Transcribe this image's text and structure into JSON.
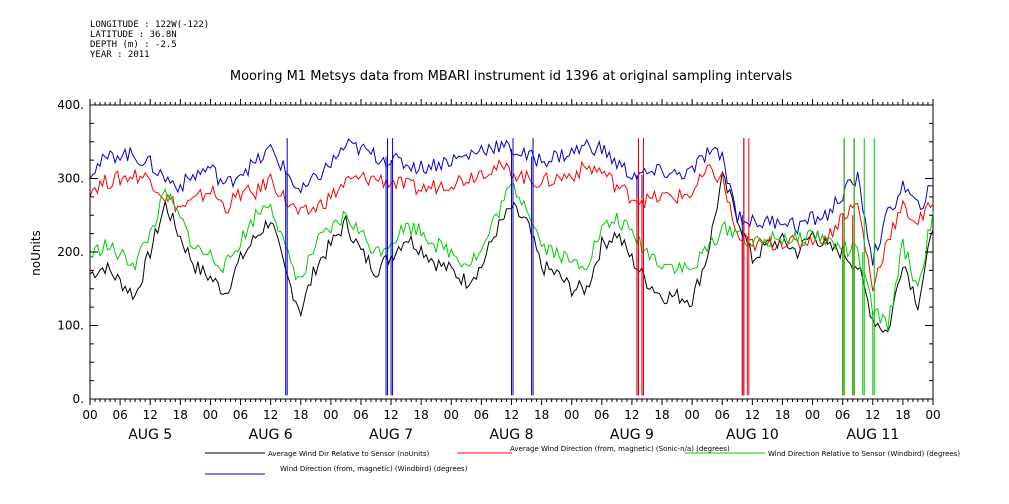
{
  "meta": [
    "LONGITUDE : 122W(-122)",
    "LATITUDE : 36.8N",
    "DEPTH (m) : -2.5",
    "YEAR : 2011"
  ],
  "chart_data": {
    "type": "line",
    "title": "Mooring M1 Metsys data from MBARI instrument id 1396 at original sampling intervals",
    "ylabel": "noUnits",
    "ylim": [
      0,
      400
    ],
    "yticks": [
      "0.",
      "100.",
      "200.",
      "300.",
      "400."
    ],
    "xlim_hours": [
      0,
      168
    ],
    "x_hour_labels": [
      "00",
      "06",
      "12",
      "18",
      "00",
      "06",
      "12",
      "18",
      "00",
      "06",
      "12",
      "18",
      "00",
      "06",
      "12",
      "18",
      "00",
      "06",
      "12",
      "18",
      "00",
      "06",
      "12",
      "18",
      "00",
      "06",
      "12",
      "18",
      "00"
    ],
    "day_labels": [
      "AUG  5",
      "AUG  6",
      "AUG  7",
      "AUG  8",
      "AUG  9",
      "AUG 10",
      "AUG 11"
    ],
    "grid": false,
    "legend_placement": "bottom",
    "series": [
      {
        "name": "Average Wind Dir Relative to Sensor (noUnits)",
        "color": "#000000",
        "x": [
          0,
          3,
          6,
          9,
          12,
          15,
          18,
          21,
          24,
          27,
          30,
          33,
          36,
          39,
          42,
          45,
          48,
          51,
          54,
          57,
          60,
          63,
          66,
          69,
          72,
          75,
          78,
          81,
          84,
          87,
          90,
          93,
          96,
          99,
          102,
          105,
          108,
          111,
          114,
          117,
          120,
          123,
          126,
          129,
          132,
          135,
          138,
          141,
          144,
          147,
          150,
          153,
          156,
          159,
          162,
          165,
          168
        ],
        "values": [
          170,
          180,
          160,
          140,
          200,
          265,
          220,
          180,
          165,
          145,
          190,
          220,
          245,
          170,
          120,
          180,
          210,
          240,
          200,
          175,
          195,
          220,
          205,
          185,
          175,
          160,
          180,
          230,
          260,
          240,
          180,
          170,
          150,
          150,
          210,
          225,
          190,
          160,
          140,
          140,
          135,
          195,
          300,
          250,
          190,
          210,
          215,
          200,
          225,
          205,
          200,
          180,
          110,
          90,
          190,
          130,
          230
        ]
      },
      {
        "name": "Average Wind Direction (from, magnetic) (Sonic-n/a) (degrees)",
        "color": "#ff0000",
        "x": [
          0,
          3,
          6,
          9,
          12,
          15,
          18,
          21,
          24,
          27,
          30,
          33,
          36,
          39,
          42,
          45,
          48,
          51,
          54,
          57,
          60,
          63,
          66,
          69,
          72,
          75,
          78,
          81,
          84,
          87,
          90,
          93,
          96,
          99,
          102,
          105,
          108,
          111,
          114,
          117,
          120,
          123,
          126,
          129,
          132,
          135,
          138,
          141,
          144,
          147,
          150,
          153,
          156,
          159,
          162,
          165,
          168
        ],
        "values": [
          285,
          295,
          300,
          305,
          300,
          275,
          260,
          270,
          285,
          260,
          280,
          280,
          300,
          270,
          250,
          260,
          275,
          295,
          300,
          300,
          295,
          290,
          285,
          290,
          295,
          300,
          310,
          315,
          310,
          300,
          295,
          300,
          305,
          315,
          310,
          290,
          275,
          270,
          275,
          275,
          280,
          310,
          300,
          220,
          210,
          210,
          215,
          210,
          220,
          220,
          250,
          265,
          150,
          220,
          260,
          240,
          265
        ]
      },
      {
        "name": "Wind Direction Relative to Sensor (Windbird) (degrees)",
        "color": "#00cc00",
        "x": [
          0,
          3,
          6,
          9,
          12,
          15,
          18,
          21,
          24,
          27,
          30,
          33,
          36,
          39,
          42,
          45,
          48,
          51,
          54,
          57,
          60,
          63,
          66,
          69,
          72,
          75,
          78,
          81,
          84,
          87,
          90,
          93,
          96,
          99,
          102,
          105,
          108,
          111,
          114,
          117,
          120,
          123,
          126,
          129,
          132,
          135,
          138,
          141,
          144,
          147,
          150,
          153,
          156,
          159,
          162,
          165,
          168
        ],
        "values": [
          195,
          210,
          195,
          185,
          225,
          280,
          245,
          205,
          195,
          180,
          215,
          250,
          270,
          200,
          160,
          210,
          230,
          250,
          225,
          200,
          215,
          235,
          230,
          210,
          200,
          185,
          200,
          250,
          290,
          265,
          210,
          200,
          185,
          185,
          230,
          245,
          225,
          200,
          185,
          180,
          175,
          205,
          230,
          230,
          210,
          215,
          220,
          215,
          225,
          215,
          205,
          200,
          120,
          100,
          210,
          150,
          255
        ]
      },
      {
        "name": "Wind Direction (from, magnetic) (Windbird) (degrees)",
        "color": "#0000cc",
        "x": [
          0,
          3,
          6,
          9,
          12,
          15,
          18,
          21,
          24,
          27,
          30,
          33,
          36,
          39,
          42,
          45,
          48,
          51,
          54,
          57,
          60,
          63,
          66,
          69,
          72,
          75,
          78,
          81,
          84,
          87,
          90,
          93,
          96,
          99,
          102,
          105,
          108,
          111,
          114,
          117,
          120,
          123,
          126,
          129,
          132,
          135,
          138,
          141,
          144,
          147,
          150,
          153,
          156,
          159,
          162,
          165,
          168
        ],
        "values": [
          310,
          325,
          335,
          330,
          320,
          300,
          290,
          305,
          315,
          290,
          310,
          320,
          340,
          310,
          280,
          300,
          320,
          345,
          340,
          330,
          325,
          320,
          315,
          320,
          325,
          330,
          340,
          345,
          340,
          330,
          325,
          330,
          335,
          345,
          340,
          320,
          305,
          305,
          310,
          305,
          310,
          335,
          330,
          250,
          240,
          240,
          245,
          235,
          245,
          250,
          280,
          300,
          190,
          250,
          290,
          260,
          290
        ]
      }
    ],
    "spikes": [
      {
        "series": 3,
        "hours": [
          39,
          59,
          60,
          84,
          88,
          109,
          110,
          130
        ]
      },
      {
        "series": 1,
        "hours": [
          109,
          110,
          130,
          131,
          150,
          152
        ]
      },
      {
        "series": 2,
        "hours": [
          150,
          152,
          154,
          156
        ]
      }
    ]
  }
}
